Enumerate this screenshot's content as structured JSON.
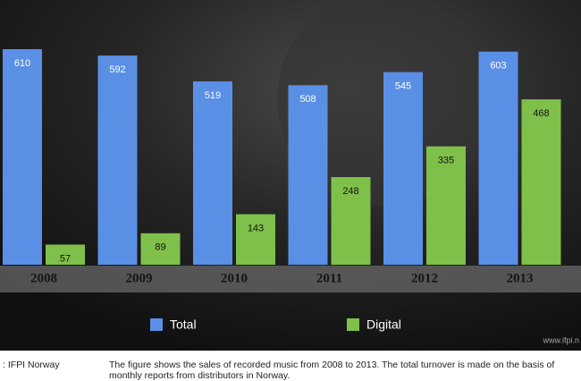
{
  "chart_data": {
    "type": "bar",
    "categories": [
      "2008",
      "2009",
      "2010",
      "2011",
      "2012",
      "2013"
    ],
    "series": [
      {
        "name": "Total",
        "color": "#5a8fe6",
        "values": [
          610,
          592,
          519,
          508,
          545,
          603
        ]
      },
      {
        "name": "Digital",
        "color": "#7fc04a",
        "values": [
          57,
          89,
          143,
          248,
          335,
          468
        ]
      }
    ],
    "watermark": "www.ifpi.n"
  },
  "source": ": IFPI Norway",
  "caption": "The figure shows the sales of recorded music from 2008 to 2013. The total turnover is made on the basis of monthly reports from distributors in Norway."
}
